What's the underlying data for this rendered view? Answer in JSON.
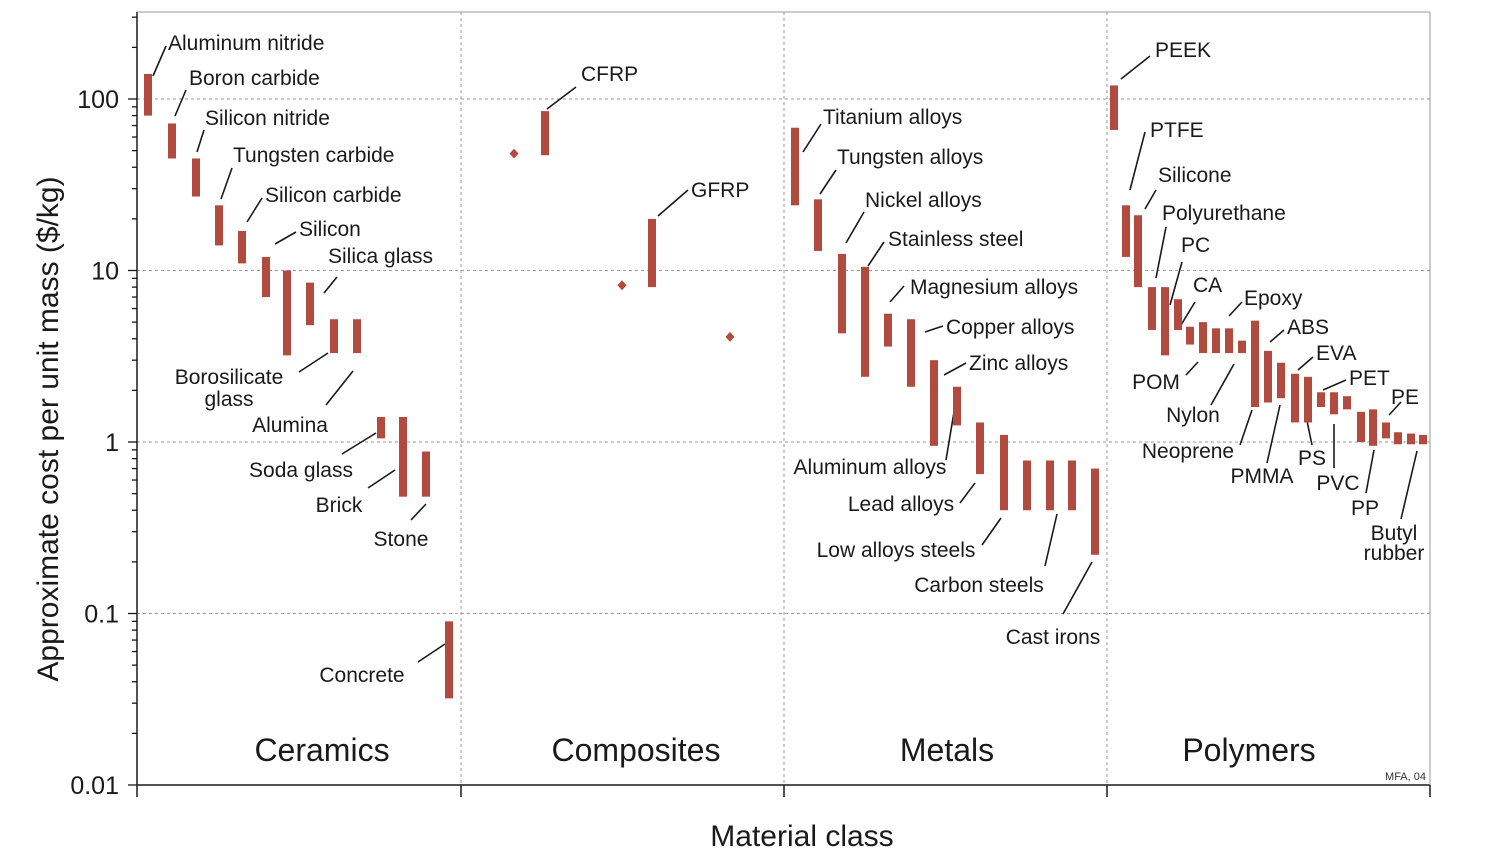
{
  "chart_data": {
    "type": "range-bar",
    "ylabel": "Approximate cost per unit mass ($/kg)",
    "xlabel": "Material class",
    "yscale": "log",
    "ylim": [
      0.01,
      300
    ],
    "yticks": [
      "100",
      "10",
      "1",
      "0.1",
      "0.01"
    ],
    "grid": true,
    "note": "MFA, 04",
    "classes": [
      "Ceramics",
      "Composites",
      "Metals",
      "Polymers"
    ],
    "series": [
      {
        "name": "Aluminum nitride",
        "class": "Ceramics",
        "low": 80,
        "high": 140
      },
      {
        "name": "Boron carbide",
        "class": "Ceramics",
        "low": 45,
        "high": 72
      },
      {
        "name": "Silicon nitride",
        "class": "Ceramics",
        "low": 27,
        "high": 45
      },
      {
        "name": "Tungsten carbide",
        "class": "Ceramics",
        "low": 14,
        "high": 24
      },
      {
        "name": "Silicon carbide",
        "class": "Ceramics",
        "low": 11,
        "high": 17
      },
      {
        "name": "Silicon",
        "class": "Ceramics",
        "low": 7,
        "high": 12
      },
      {
        "name": "Borosilicate glass",
        "class": "Ceramics",
        "low": 3.2,
        "high": 10
      },
      {
        "name": "Silica glass",
        "class": "Ceramics",
        "low": 4.8,
        "high": 8.5
      },
      {
        "name": "Alumina",
        "class": "Ceramics",
        "low": 3.3,
        "high": 5.2
      },
      {
        "name": "",
        "class": "Ceramics",
        "low": 3.3,
        "high": 5.2
      },
      {
        "name": "Soda glass",
        "class": "Ceramics",
        "low": 1.05,
        "high": 1.4
      },
      {
        "name": "Brick",
        "class": "Ceramics",
        "low": 0.48,
        "high": 1.4
      },
      {
        "name": "Stone",
        "class": "Ceramics",
        "low": 0.48,
        "high": 0.88
      },
      {
        "name": "Concrete",
        "class": "Ceramics",
        "low": 0.032,
        "high": 0.09
      },
      {
        "name": "CFRP",
        "class": "Composites",
        "low": 47,
        "high": 85
      },
      {
        "name": "",
        "class": "Composites",
        "value": 48
      },
      {
        "name": "GFRP",
        "class": "Composites",
        "low": 8,
        "high": 20
      },
      {
        "name": "",
        "class": "Composites",
        "value": 8.2
      },
      {
        "name": "",
        "class": "Composites",
        "value": 4.1
      },
      {
        "name": "Titanium alloys",
        "class": "Metals",
        "low": 24,
        "high": 68
      },
      {
        "name": "Tungsten alloys",
        "class": "Metals",
        "low": 13,
        "high": 26
      },
      {
        "name": "Nickel alloys",
        "class": "Metals",
        "low": 4.3,
        "high": 12.5
      },
      {
        "name": "Stainless steel",
        "class": "Metals",
        "low": 2.4,
        "high": 10.5
      },
      {
        "name": "Magnesium alloys",
        "class": "Metals",
        "low": 3.6,
        "high": 5.6
      },
      {
        "name": "Copper alloys",
        "class": "Metals",
        "low": 2.1,
        "high": 5.2
      },
      {
        "name": "Zinc alloys",
        "class": "Metals",
        "low": 0.95,
        "high": 3
      },
      {
        "name": "Aluminum alloys",
        "class": "Metals",
        "low": 1.25,
        "high": 2.1
      },
      {
        "name": "Lead alloys",
        "class": "Metals",
        "low": 0.65,
        "high": 1.3
      },
      {
        "name": "Low alloys steels",
        "class": "Metals",
        "low": 0.4,
        "high": 1.1
      },
      {
        "name": "",
        "class": "Metals",
        "low": 0.4,
        "high": 0.78
      },
      {
        "name": "",
        "class": "Metals",
        "low": 0.4,
        "high": 0.78
      },
      {
        "name": "Carbon steels",
        "class": "Metals",
        "low": 0.4,
        "high": 0.78
      },
      {
        "name": "Cast irons",
        "class": "Metals",
        "low": 0.22,
        "high": 0.7
      },
      {
        "name": "PEEK",
        "class": "Polymers",
        "low": 66,
        "high": 120
      },
      {
        "name": "PTFE",
        "class": "Polymers",
        "low": 12,
        "high": 24
      },
      {
        "name": "Silicone",
        "class": "Polymers",
        "low": 8,
        "high": 21
      },
      {
        "name": "Polyurethane",
        "class": "Polymers",
        "low": 4.5,
        "high": 8
      },
      {
        "name": "POM",
        "class": "Polymers",
        "low": 3.2,
        "high": 8
      },
      {
        "name": "PC",
        "class": "Polymers",
        "low": 4.5,
        "high": 6.8
      },
      {
        "name": "CA",
        "class": "Polymers",
        "low": 3.7,
        "high": 4.7
      },
      {
        "name": "",
        "class": "Polymers",
        "low": 3.3,
        "high": 5
      },
      {
        "name": "Nylon",
        "class": "Polymers",
        "low": 3.3,
        "high": 4.6
      },
      {
        "name": "",
        "class": "Polymers",
        "low": 3.3,
        "high": 4.6
      },
      {
        "name": "Neoprene",
        "class": "Polymers",
        "low": 3.3,
        "high": 3.9
      },
      {
        "name": "Epoxy",
        "class": "Polymers",
        "low": 1.6,
        "high": 5.1
      },
      {
        "name": "PMMA",
        "class": "Polymers",
        "low": 1.7,
        "high": 3.4
      },
      {
        "name": "ABS",
        "class": "Polymers",
        "low": 1.8,
        "high": 2.9
      },
      {
        "name": "EVA",
        "class": "Polymers",
        "low": 1.3,
        "high": 2.5
      },
      {
        "name": "PS",
        "class": "Polymers",
        "low": 1.3,
        "high": 2.4
      },
      {
        "name": "PET",
        "class": "Polymers",
        "low": 1.6,
        "high": 1.95
      },
      {
        "name": "PVC",
        "class": "Polymers",
        "low": 1.45,
        "high": 1.95
      },
      {
        "name": "",
        "class": "Polymers",
        "low": 1.55,
        "high": 1.85
      },
      {
        "name": "",
        "class": "Polymers",
        "low": 1.0,
        "high": 1.5
      },
      {
        "name": "PP",
        "class": "Polymers",
        "low": 0.95,
        "high": 1.55
      },
      {
        "name": "",
        "class": "Polymers",
        "low": 1.05,
        "high": 1.3
      },
      {
        "name": "",
        "class": "Polymers",
        "low": 0.97,
        "high": 1.14
      },
      {
        "name": "Butyl rubber",
        "class": "Polymers",
        "low": 0.97,
        "high": 1.12
      },
      {
        "name": "PE",
        "class": "Polymers",
        "low": 0.97,
        "high": 1.1
      }
    ]
  },
  "colors": {
    "bar": "#b24b3f",
    "axis": "#1a1a1a",
    "grid": "#9a9a9a"
  },
  "labels": {
    "Borosilicate glass": [
      "Borosilicate",
      "glass"
    ],
    "Butyl rubber": [
      "Butyl",
      "rubber"
    ]
  }
}
